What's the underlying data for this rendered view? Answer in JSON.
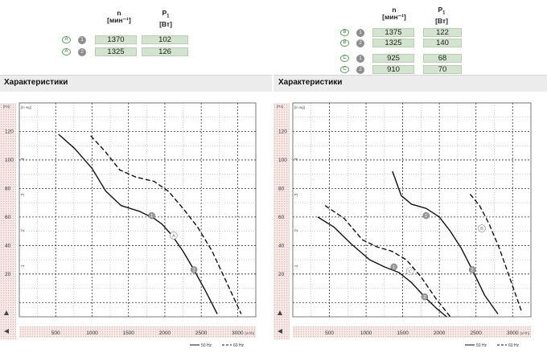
{
  "section_title": "Характеристики",
  "left_specs": {
    "col_n": {
      "line1": "n",
      "line2": "[мин⁻¹]"
    },
    "col_p": {
      "line1": "P",
      "sub": "1",
      "line2": "[Вт]"
    },
    "rows": [
      {
        "letter": "A",
        "num": "1",
        "n": "1370",
        "p": "102"
      },
      {
        "letter": "A",
        "num": "2",
        "n": "1325",
        "p": "126"
      }
    ]
  },
  "right_specs": {
    "col_n": {
      "line1": "n",
      "line2": "[мин⁻¹]"
    },
    "col_p": {
      "line1": "P",
      "sub": "1",
      "line2": "[Вт]"
    },
    "rows": [
      {
        "letter": "B",
        "num": "1",
        "n": "1375",
        "p": "122"
      },
      {
        "letter": "B",
        "num": "2",
        "n": "1325",
        "p": "140"
      },
      {
        "letter": "C",
        "num": "1",
        "n": "925",
        "p": "68"
      },
      {
        "letter": "C",
        "num": "2",
        "n": "910",
        "p": "70"
      }
    ]
  },
  "legend": {
    "solid": "50 Hz",
    "dashed": "60 Hz"
  },
  "chart_data": [
    {
      "type": "line",
      "x_unit": "[m³/h]",
      "y_unit": "[Pa]",
      "y_unit2": "[in wg]",
      "x_ticks": [
        "500",
        "1000",
        "1500",
        "2000",
        "2500",
        "3000"
      ],
      "y_ticks": [
        "20",
        "40",
        "60",
        "80",
        "100",
        "120"
      ],
      "y2_ticks": [
        ".1",
        ".2",
        ".3",
        ".4"
      ],
      "xlim": [
        0,
        3250
      ],
      "ylim": [
        -10,
        140
      ],
      "series": [
        {
          "name": "A-1",
          "style": "solid",
          "x": [
            540,
            760,
            1000,
            1190,
            1400,
            1650,
            1850,
            1960,
            2100,
            2250,
            2400,
            2560,
            2720
          ],
          "y": [
            118,
            108,
            94,
            78,
            68,
            64,
            59,
            55,
            47,
            36,
            23,
            8,
            -8
          ]
        },
        {
          "name": "A-2",
          "style": "dashed",
          "x": [
            980,
            1180,
            1380,
            1600,
            1850,
            2050,
            2250,
            2450,
            2650,
            2850,
            3050
          ],
          "y": [
            117,
            106,
            93,
            88,
            85,
            78,
            66,
            53,
            36,
            14,
            -8
          ]
        }
      ],
      "markers": [
        {
          "label": "1",
          "x": 1820,
          "y": 61
        },
        {
          "label": "2",
          "x": 2400,
          "y": 23
        }
      ],
      "curve_labels": [
        {
          "label": "A",
          "x": 2120,
          "y": 47
        }
      ]
    },
    {
      "type": "line",
      "x_unit": "[m³/h]",
      "y_unit": "[Pa]",
      "y_unit2": "[in wg]",
      "x_ticks": [
        "500",
        "1000",
        "1500",
        "2000",
        "2500",
        "3000"
      ],
      "y_ticks": [
        "20",
        "40",
        "60",
        "80",
        "100",
        "120"
      ],
      "y2_ticks": [
        ".1",
        ".2",
        ".3",
        ".4"
      ],
      "xlim": [
        0,
        3250
      ],
      "ylim": [
        -10,
        140
      ],
      "series": [
        {
          "name": "B-1",
          "style": "solid",
          "x": [
            1360,
            1480,
            1620,
            1820,
            2000,
            2150,
            2300,
            2450,
            2620,
            2800
          ],
          "y": [
            92,
            75,
            69,
            66,
            60,
            50,
            38,
            23,
            5,
            -8
          ]
        },
        {
          "name": "B-2",
          "style": "dashed",
          "x": [
            2420,
            2550,
            2680,
            2820,
            2970,
            3120
          ],
          "y": [
            76,
            68,
            55,
            38,
            16,
            -6
          ]
        },
        {
          "name": "C-1",
          "style": "solid",
          "x": [
            340,
            560,
            800,
            1050,
            1250,
            1450,
            1620,
            1800,
            1960,
            2100
          ],
          "y": [
            60,
            53,
            41,
            30,
            25,
            21,
            14,
            4,
            -4,
            -10
          ]
        },
        {
          "name": "C-2",
          "style": "dashed",
          "x": [
            440,
            700,
            950,
            1150,
            1350,
            1550,
            1750,
            1950,
            2150
          ],
          "y": [
            68,
            59,
            44,
            39,
            36,
            30,
            18,
            3,
            -10
          ]
        }
      ],
      "markers": [
        {
          "label": "1",
          "x": 1820,
          "y": 61
        },
        {
          "label": "2",
          "x": 2450,
          "y": 23
        },
        {
          "label": "1",
          "x": 1380,
          "y": 25
        },
        {
          "label": "2",
          "x": 1800,
          "y": 4
        }
      ],
      "curve_labels": [
        {
          "label": "B",
          "x": 2580,
          "y": 52
        },
        {
          "label": "C",
          "x": 1600,
          "y": 22
        }
      ]
    }
  ]
}
